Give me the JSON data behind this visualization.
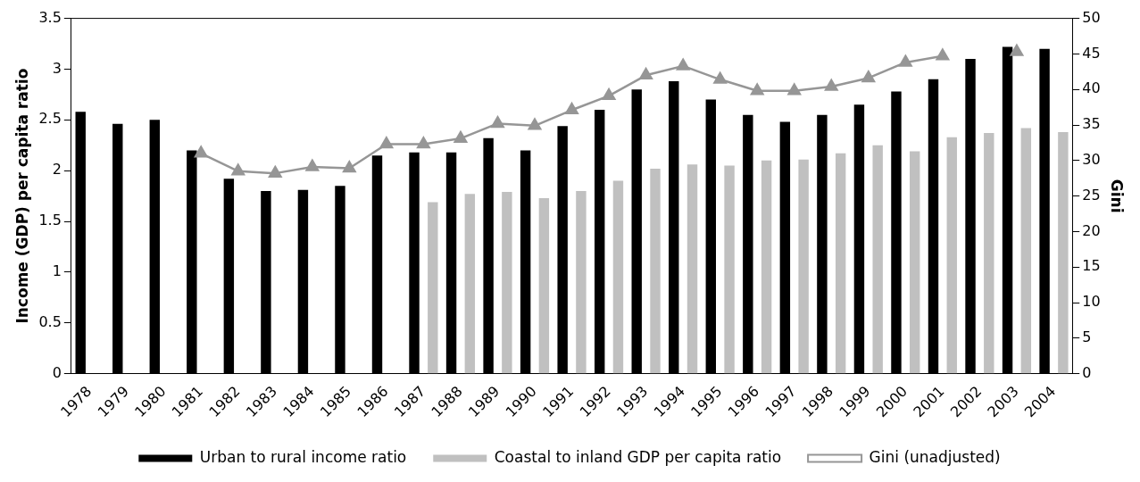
{
  "chart_data": {
    "type": "bar",
    "categories": [
      "1978",
      "1979",
      "1980",
      "1981",
      "1982",
      "1983",
      "1984",
      "1985",
      "1986",
      "1987",
      "1988",
      "1989",
      "1990",
      "1991",
      "1992",
      "1993",
      "1994",
      "1995",
      "1996",
      "1997",
      "1998",
      "1999",
      "2000",
      "2001",
      "2002",
      "2003",
      "2004"
    ],
    "ylabel": "Income (GDP) per capita ratio",
    "y2label": "Gini",
    "ylim": [
      0,
      3.5
    ],
    "yticks": [
      0,
      0.5,
      1,
      1.5,
      2,
      2.5,
      3,
      3.5
    ],
    "y2lim": [
      0,
      50
    ],
    "y2ticks": [
      0,
      5,
      10,
      15,
      20,
      25,
      30,
      35,
      40,
      45,
      50
    ],
    "grid": false,
    "legend": "bottom",
    "series": [
      {
        "name": "Urban to rural income ratio",
        "color": "#000000",
        "values": [
          2.58,
          2.46,
          2.5,
          2.2,
          1.92,
          1.8,
          1.81,
          1.85,
          2.15,
          2.18,
          2.18,
          2.32,
          2.2,
          2.44,
          2.6,
          2.8,
          2.88,
          2.7,
          2.55,
          2.48,
          2.55,
          2.65,
          2.78,
          2.9,
          3.1,
          3.22,
          3.2
        ]
      },
      {
        "name": "Coastal to inland GDP per capita ratio",
        "color": "#c0c0c0",
        "values": [
          null,
          null,
          null,
          null,
          null,
          null,
          null,
          null,
          null,
          1.69,
          1.77,
          1.79,
          1.73,
          1.8,
          1.9,
          2.02,
          2.06,
          2.05,
          2.1,
          2.11,
          2.17,
          2.25,
          2.19,
          2.33,
          2.37,
          2.42,
          2.38
        ]
      },
      {
        "name": "Gini (unadjusted)",
        "type": "line",
        "axis": "y2",
        "color": "#969696",
        "marker": "triangle",
        "line_style": "solid",
        "values": [
          null,
          null,
          null,
          31,
          28.5,
          28.2,
          29.1,
          28.9,
          32.3,
          32.3,
          33.1,
          35.2,
          34.9,
          37.1,
          39.1,
          42,
          43.3,
          41.4,
          39.8,
          39.8,
          40.4,
          41.6,
          43.8,
          44.7,
          null,
          45.3,
          null
        ]
      }
    ]
  }
}
